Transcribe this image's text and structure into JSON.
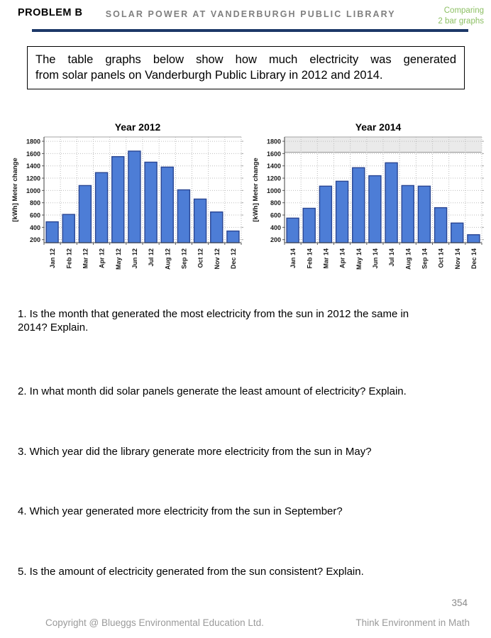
{
  "header": {
    "problem_label": "PROBLEM B",
    "title": "SOLAR POWER AT VANDERBURGH PUBLIC LIBRARY",
    "corner_note_line1": "Comparing",
    "corner_note_line2": "2 bar graphs",
    "accent_green": "#8cbf63",
    "rule_color": "#1c3868"
  },
  "intro_box": {
    "line1": "The table graphs below show how much electricity was generated",
    "line2": "from solar panels on Vanderburgh Public Library in 2012 and 2014."
  },
  "chart_data": [
    {
      "type": "bar",
      "title": "Year 2012",
      "ylabel": "[kWh] Meter change",
      "xlabel": "",
      "categories": [
        "Jan 12",
        "Feb 12",
        "Mar 12",
        "Apr 12",
        "May 12",
        "Jun 12",
        "Jul 12",
        "Aug 12",
        "Sep 12",
        "Oct 12",
        "Nov 12",
        "Dec 12"
      ],
      "values": [
        490,
        610,
        1080,
        1290,
        1550,
        1640,
        1460,
        1380,
        1010,
        860,
        650,
        340
      ],
      "ylim": [
        150,
        1870
      ],
      "yticks": [
        200,
        400,
        600,
        800,
        1000,
        1200,
        1400,
        1600,
        1800
      ],
      "grid": true,
      "legend": false,
      "bar_fill": "#4d7dd6",
      "bar_stroke": "#2a4693"
    },
    {
      "type": "bar",
      "title": "Year 2014",
      "ylabel": "[kWh] Meter change",
      "xlabel": "",
      "categories": [
        "Jan 14",
        "Feb 14",
        "Mar 14",
        "Apr 14",
        "May 14",
        "Jun 14",
        "Jul 14",
        "Aug 14",
        "Sep 14",
        "Oct 14",
        "Nov 14",
        "Dec 14"
      ],
      "values": [
        550,
        710,
        1070,
        1150,
        1370,
        1240,
        1450,
        1080,
        1070,
        720,
        470,
        280
      ],
      "ylim": [
        150,
        1870
      ],
      "yticks": [
        200,
        400,
        600,
        800,
        1000,
        1200,
        1400,
        1600,
        1800
      ],
      "grid": true,
      "legend": false,
      "bar_fill": "#4d7dd6",
      "bar_stroke": "#2a4693",
      "top_band": {
        "to": 1620,
        "fill": "#eaeaea"
      }
    }
  ],
  "questions": [
    "1. Is the month that generated the most electricity from the sun in 2012 the same in 2014? Explain.",
    "2. In what month did solar panels generate the least amount of electricity? Explain.",
    "3. Which year did the library generate more electricity from the sun in May?",
    "4. Which year generated more electricity from the sun in September?",
    "5. Is the amount of electricity generated from the sun consistent? Explain."
  ],
  "footer": {
    "page_number": "354",
    "copyright": "Copyright @ Blueggs Environmental Education Ltd.",
    "tagline": "Think Environment in Math"
  }
}
